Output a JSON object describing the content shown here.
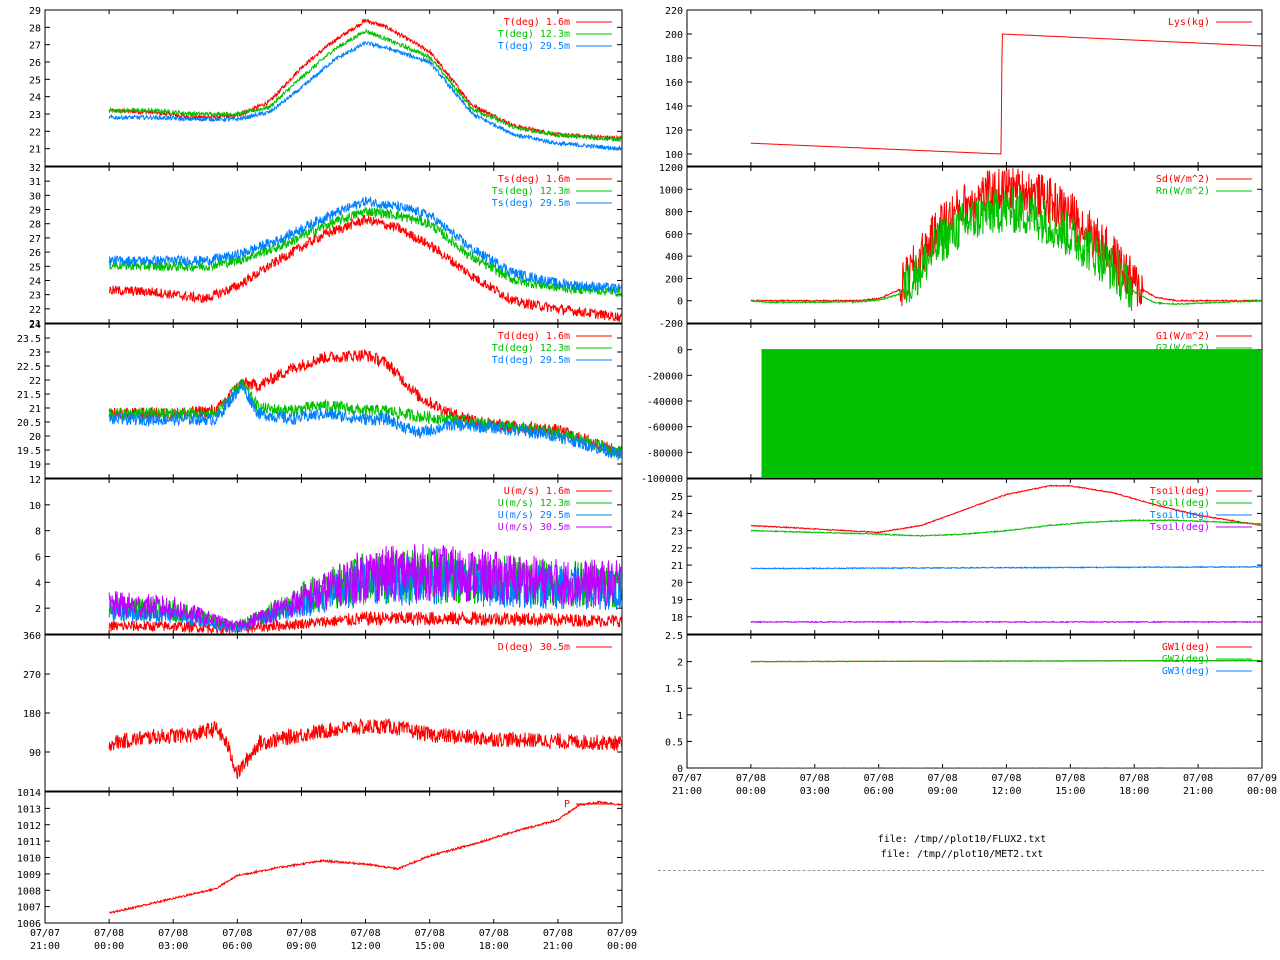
{
  "x_axis_labels": [
    {
      "date": "07/07",
      "time": "21:00"
    },
    {
      "date": "07/08",
      "time": "00:00"
    },
    {
      "date": "07/08",
      "time": "03:00"
    },
    {
      "date": "07/08",
      "time": "06:00"
    },
    {
      "date": "07/08",
      "time": "09:00"
    },
    {
      "date": "07/08",
      "time": "12:00"
    },
    {
      "date": "07/08",
      "time": "15:00"
    },
    {
      "date": "07/08",
      "time": "18:00"
    },
    {
      "date": "07/08",
      "time": "21:00"
    },
    {
      "date": "07/09",
      "time": "00:00"
    }
  ],
  "files": {
    "line1": "file: /tmp//plot10/FLUX2.txt",
    "line2": "file: /tmp//plot10/MET2.txt"
  },
  "colors": {
    "red": "#ff0000",
    "green": "#00c000",
    "blue": "#0080ff",
    "magenta": "#c000ff"
  },
  "chart_data": [
    {
      "id": "T",
      "type": "line",
      "ylim": [
        20,
        29
      ],
      "yticks": [
        21,
        22,
        23,
        24,
        25,
        26,
        27,
        28,
        29
      ],
      "series": [
        {
          "name": "T(deg)  1.6m",
          "color": "#ff0000",
          "x": [
            0,
            2,
            4,
            6,
            7.5,
            9,
            10.5,
            12,
            13,
            15,
            17,
            19,
            21,
            24
          ],
          "y": [
            23.2,
            23.1,
            22.8,
            22.9,
            23.7,
            25.7,
            27.2,
            28.4,
            28.0,
            26.6,
            23.5,
            22.3,
            21.8,
            21.6
          ]
        },
        {
          "name": "T(deg) 12.3m",
          "color": "#00c000",
          "x": [
            0,
            2,
            4,
            6,
            7.5,
            9,
            10.5,
            12,
            13,
            15,
            17,
            19,
            21,
            24
          ],
          "y": [
            23.2,
            23.2,
            23.0,
            23.0,
            23.4,
            25.1,
            26.7,
            27.8,
            27.3,
            26.3,
            23.3,
            22.2,
            21.8,
            21.5
          ]
        },
        {
          "name": "T(deg) 29.5m",
          "color": "#0080ff",
          "x": [
            0,
            2,
            4,
            6,
            7.5,
            9,
            10.5,
            12,
            13,
            15,
            17,
            19,
            21,
            24
          ],
          "y": [
            22.8,
            22.8,
            22.7,
            22.7,
            23.1,
            24.5,
            26.1,
            27.1,
            26.8,
            26.0,
            23.0,
            21.8,
            21.3,
            21.0
          ]
        }
      ]
    },
    {
      "id": "Ts",
      "type": "line",
      "ylim": [
        21,
        32
      ],
      "yticks": [
        21,
        22,
        23,
        24,
        25,
        26,
        27,
        28,
        29,
        30,
        31,
        32
      ],
      "series": [
        {
          "name": "Ts(deg)  1.6m",
          "color": "#ff0000",
          "x": [
            0,
            2,
            4.5,
            6,
            8,
            10,
            12,
            13.5,
            15,
            17,
            19,
            21,
            24
          ],
          "y": [
            23.3,
            23.2,
            22.7,
            23.6,
            25.5,
            27.2,
            28.3,
            27.7,
            26.5,
            24.3,
            22.5,
            22.0,
            21.4
          ]
        },
        {
          "name": "Ts(deg) 12.3m",
          "color": "#00c000",
          "x": [
            0,
            2,
            4.5,
            6,
            8,
            10,
            12,
            13.5,
            15,
            17,
            19,
            21,
            24
          ],
          "y": [
            25.1,
            25.0,
            25.0,
            25.4,
            26.4,
            27.8,
            28.9,
            28.6,
            28.0,
            25.6,
            24.0,
            23.5,
            23.2
          ]
        },
        {
          "name": "Ts(deg) 29.5m",
          "color": "#0080ff",
          "x": [
            0,
            2,
            4.5,
            6,
            8,
            10,
            12,
            13.5,
            15,
            17,
            19,
            21,
            24
          ],
          "y": [
            25.4,
            25.4,
            25.4,
            25.8,
            26.9,
            28.4,
            29.6,
            29.2,
            28.6,
            26.2,
            24.5,
            23.8,
            23.4
          ]
        }
      ]
    },
    {
      "id": "Td",
      "type": "line",
      "ylim": [
        18.5,
        24
      ],
      "yticks": [
        19,
        19.5,
        20,
        20.5,
        21,
        21.5,
        22,
        22.5,
        23,
        23.5,
        24
      ],
      "series": [
        {
          "name": "Td(deg)  1.6m",
          "color": "#ff0000",
          "x": [
            0,
            3,
            5,
            6.2,
            7,
            8.5,
            10,
            12,
            13,
            14.5,
            16,
            18,
            21,
            24
          ],
          "y": [
            20.8,
            20.8,
            20.9,
            21.9,
            21.8,
            22.4,
            22.8,
            22.9,
            22.6,
            21.4,
            20.8,
            20.4,
            20.2,
            19.4
          ]
        },
        {
          "name": "Td(deg) 12.3m",
          "color": "#00c000",
          "x": [
            0,
            3,
            5,
            6.2,
            7,
            8.5,
            10,
            12,
            13,
            14.5,
            16,
            18,
            21,
            24
          ],
          "y": [
            20.8,
            20.8,
            20.8,
            21.9,
            21.0,
            20.9,
            21.1,
            20.9,
            20.9,
            20.7,
            20.6,
            20.4,
            20.1,
            19.4
          ]
        },
        {
          "name": "Td(deg) 29.5m",
          "color": "#0080ff",
          "x": [
            0,
            3,
            5,
            6.2,
            7,
            8.5,
            10,
            12,
            13,
            14.5,
            16,
            18,
            21,
            24
          ],
          "y": [
            20.6,
            20.6,
            20.6,
            21.8,
            20.8,
            20.6,
            20.8,
            20.6,
            20.6,
            20.1,
            20.4,
            20.3,
            20.0,
            19.3
          ]
        }
      ]
    },
    {
      "id": "U",
      "type": "line",
      "ylim": [
        0,
        12
      ],
      "yticks": [
        2,
        4,
        6,
        8,
        10,
        12
      ],
      "series": [
        {
          "name": "U(m/s)  1.6m",
          "color": "#ff0000",
          "x": [
            0,
            3,
            6,
            9,
            12,
            15,
            18,
            21,
            24
          ],
          "y": [
            0.6,
            0.6,
            0.4,
            0.8,
            1.2,
            1.2,
            1.2,
            1.1,
            1.0
          ]
        },
        {
          "name": "U(m/s) 12.3m",
          "color": "#00c000",
          "x": [
            0,
            3,
            6,
            9,
            12,
            15,
            18,
            21,
            24
          ],
          "y": [
            2.0,
            1.8,
            0.6,
            2.8,
            4.3,
            4.6,
            4.2,
            4.0,
            3.8
          ]
        },
        {
          "name": "U(m/s) 29.5m",
          "color": "#0080ff",
          "x": [
            0,
            3,
            6,
            9,
            12,
            15,
            18,
            21,
            24
          ],
          "y": [
            1.8,
            1.5,
            0.4,
            2.4,
            3.9,
            4.2,
            3.8,
            3.6,
            3.4
          ]
        },
        {
          "name": "U(m/s) 30.5m",
          "color": "#c000ff",
          "x": [
            0,
            3,
            6,
            9,
            12,
            15,
            18,
            21,
            24
          ],
          "y": [
            2.3,
            2.0,
            0.6,
            2.6,
            4.6,
            4.8,
            4.4,
            4.0,
            3.9
          ]
        }
      ]
    },
    {
      "id": "D",
      "type": "line",
      "ylim": [
        0,
        360
      ],
      "yticks": [
        90,
        180,
        270,
        360
      ],
      "series": [
        {
          "name": "D(deg)  30.5m",
          "color": "#ff0000",
          "x": [
            0,
            2,
            4,
            5,
            5.5,
            6,
            7,
            9,
            11,
            13,
            15,
            18,
            21,
            24
          ],
          "y": [
            110,
            125,
            130,
            145,
            110,
            40,
            110,
            130,
            145,
            150,
            130,
            120,
            115,
            110
          ]
        }
      ]
    },
    {
      "id": "P",
      "type": "line",
      "ylim": [
        1006,
        1014
      ],
      "yticks": [
        1006,
        1007,
        1008,
        1009,
        1010,
        1011,
        1012,
        1013,
        1014
      ],
      "series": [
        {
          "name": "P",
          "color": "#ff0000",
          "x": [
            0,
            1,
            3,
            5,
            6,
            8,
            10,
            12,
            13.5,
            15,
            17,
            19,
            21,
            22,
            23,
            24
          ],
          "y": [
            1006.6,
            1006.9,
            1007.5,
            1008.1,
            1008.9,
            1009.4,
            1009.8,
            1009.6,
            1009.3,
            1010.1,
            1010.8,
            1011.6,
            1012.3,
            1013.2,
            1013.4,
            1013.2
          ]
        }
      ]
    },
    {
      "id": "Lys",
      "type": "line",
      "ylim": [
        90,
        220
      ],
      "yticks": [
        100,
        120,
        140,
        160,
        180,
        200,
        220
      ],
      "series": [
        {
          "name": "Lys(kg)",
          "color": "#ff0000",
          "x": [
            0,
            11.75,
            11.8,
            24
          ],
          "y": [
            109,
            100,
            200,
            190
          ]
        }
      ]
    },
    {
      "id": "Rad",
      "type": "line",
      "ylim": [
        -200,
        1200
      ],
      "yticks": [
        -200,
        0,
        200,
        400,
        600,
        800,
        1000,
        1200
      ],
      "series": [
        {
          "name": "Sd(W/m^2)",
          "color": "#ff0000",
          "x": [
            0,
            5,
            6,
            7,
            8,
            9,
            10,
            11,
            12,
            13,
            14,
            15,
            16,
            17,
            18,
            19,
            20,
            24
          ],
          "y": [
            0,
            0,
            20,
            100,
            400,
            700,
            850,
            950,
            1000,
            980,
            900,
            780,
            600,
            400,
            150,
            30,
            0,
            0
          ]
        },
        {
          "name": "Rn(W/m^2)",
          "color": "#00c000",
          "x": [
            0,
            1,
            5,
            6,
            7,
            8,
            9,
            10,
            11,
            12,
            13,
            14,
            15,
            16,
            17,
            18,
            19,
            20,
            24
          ],
          "y": [
            0,
            -15,
            -10,
            5,
            60,
            300,
            550,
            680,
            780,
            820,
            780,
            700,
            580,
            450,
            280,
            80,
            -20,
            -30,
            0
          ]
        }
      ]
    },
    {
      "id": "G",
      "type": "area",
      "ylim": [
        -100000,
        20000
      ],
      "yticks": [
        -100000,
        -80000,
        -60000,
        -40000,
        -20000,
        0
      ],
      "series": [
        {
          "name": "G1(W/m^2)",
          "color": "#ff0000",
          "x": [
            0.5,
            24
          ],
          "y": [
            0,
            0
          ]
        },
        {
          "name": "G2(W/m^2)",
          "color": "#00c000",
          "x": [
            0.5,
            24
          ],
          "y": [
            -100000,
            -100000
          ]
        }
      ]
    },
    {
      "id": "Tsoil",
      "type": "line",
      "ylim": [
        17,
        26
      ],
      "yticks": [
        18,
        19,
        20,
        21,
        22,
        23,
        24,
        25
      ],
      "series": [
        {
          "name": "Tsoil(deg)",
          "color": "#ff0000",
          "x": [
            0,
            3,
            6,
            8,
            10,
            12,
            14,
            15,
            17,
            19,
            21,
            24
          ],
          "y": [
            23.3,
            23.1,
            22.9,
            23.3,
            24.2,
            25.1,
            25.6,
            25.6,
            25.2,
            24.5,
            23.9,
            23.3
          ]
        },
        {
          "name": "Tsoil(deg)",
          "color": "#00c000",
          "x": [
            0,
            3,
            6,
            8,
            10,
            12,
            14,
            16,
            18,
            20,
            22,
            24
          ],
          "y": [
            23.0,
            22.9,
            22.8,
            22.7,
            22.8,
            23.0,
            23.3,
            23.5,
            23.6,
            23.6,
            23.5,
            23.4
          ]
        },
        {
          "name": "Tsoil(deg)",
          "color": "#0080ff",
          "x": [
            0,
            24
          ],
          "y": [
            20.8,
            20.9
          ]
        },
        {
          "name": "Tsoil(deg)",
          "color": "#c000ff",
          "x": [
            0,
            24
          ],
          "y": [
            17.7,
            17.7
          ]
        }
      ]
    },
    {
      "id": "GW",
      "type": "line",
      "ylim": [
        0,
        2.5
      ],
      "yticks": [
        0,
        0.5,
        1,
        1.5,
        2,
        2.5
      ],
      "series": [
        {
          "name": "GW1(deg)",
          "color": "#ff0000",
          "x": [
            0,
            24
          ],
          "y": [
            2.0,
            2.02
          ]
        },
        {
          "name": "GW2(deg)",
          "color": "#00c000",
          "x": [
            0,
            12,
            24
          ],
          "y": [
            2.0,
            2.01,
            2.02
          ]
        },
        {
          "name": "GW3(deg)",
          "color": "#0080ff",
          "x": [
            0,
            24
          ],
          "y": [
            0.0,
            0.0
          ]
        }
      ]
    }
  ]
}
